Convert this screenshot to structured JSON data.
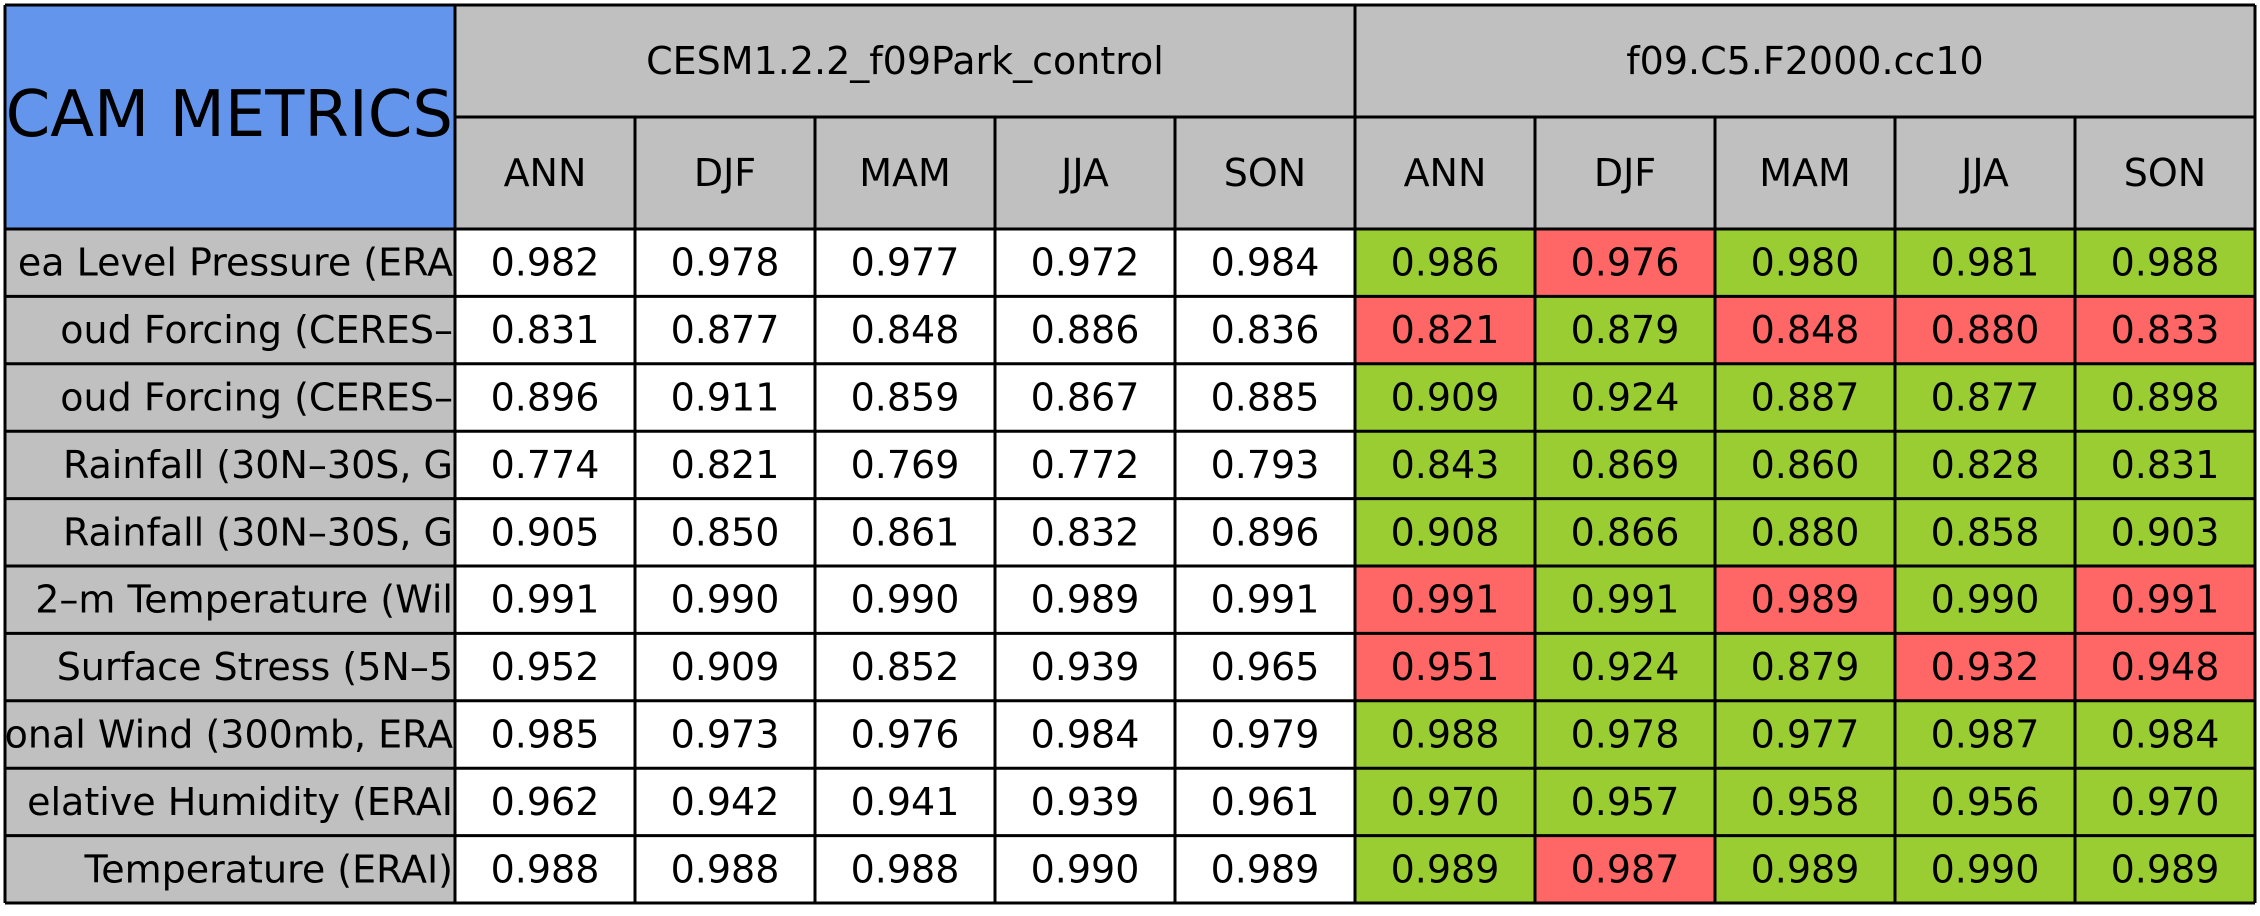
{
  "title": "CAM METRICS",
  "colors": {
    "title_bg": "#6495ED",
    "header_bg": "#C0C0C0",
    "row_label_bg": "#C0C0C0",
    "cell_bg": "#FFFFFF",
    "better": "#9ACD32",
    "worse": "#FF6666",
    "border": "#000000"
  },
  "chart_data": {
    "type": "table",
    "groups": [
      {
        "name": "CESM1.2.2_f09Park_control",
        "columns": [
          "ANN",
          "DJF",
          "MAM",
          "JJA",
          "SON"
        ]
      },
      {
        "name": "f09.C5.F2000.cc10",
        "columns": [
          "ANN",
          "DJF",
          "MAM",
          "JJA",
          "SON"
        ]
      }
    ],
    "rows": [
      {
        "label": "ea Level Pressure (ERA",
        "values": [
          "0.982",
          "0.978",
          "0.977",
          "0.972",
          "0.984",
          "0.986",
          "0.976",
          "0.980",
          "0.981",
          "0.988"
        ],
        "status": [
          "",
          "",
          "",
          "",
          "",
          "better",
          "worse",
          "better",
          "better",
          "better"
        ]
      },
      {
        "label": "oud Forcing (CERES–",
        "values": [
          "0.831",
          "0.877",
          "0.848",
          "0.886",
          "0.836",
          "0.821",
          "0.879",
          "0.848",
          "0.880",
          "0.833"
        ],
        "status": [
          "",
          "",
          "",
          "",
          "",
          "worse",
          "better",
          "worse",
          "worse",
          "worse"
        ]
      },
      {
        "label": "oud Forcing (CERES–",
        "values": [
          "0.896",
          "0.911",
          "0.859",
          "0.867",
          "0.885",
          "0.909",
          "0.924",
          "0.887",
          "0.877",
          "0.898"
        ],
        "status": [
          "",
          "",
          "",
          "",
          "",
          "better",
          "better",
          "better",
          "better",
          "better"
        ]
      },
      {
        "label": "Rainfall (30N–30S, G",
        "values": [
          "0.774",
          "0.821",
          "0.769",
          "0.772",
          "0.793",
          "0.843",
          "0.869",
          "0.860",
          "0.828",
          "0.831"
        ],
        "status": [
          "",
          "",
          "",
          "",
          "",
          "better",
          "better",
          "better",
          "better",
          "better"
        ]
      },
      {
        "label": "Rainfall (30N–30S, G",
        "values": [
          "0.905",
          "0.850",
          "0.861",
          "0.832",
          "0.896",
          "0.908",
          "0.866",
          "0.880",
          "0.858",
          "0.903"
        ],
        "status": [
          "",
          "",
          "",
          "",
          "",
          "better",
          "better",
          "better",
          "better",
          "better"
        ]
      },
      {
        "label": "2–m Temperature (Wil",
        "values": [
          "0.991",
          "0.990",
          "0.990",
          "0.989",
          "0.991",
          "0.991",
          "0.991",
          "0.989",
          "0.990",
          "0.991"
        ],
        "status": [
          "",
          "",
          "",
          "",
          "",
          "worse",
          "better",
          "worse",
          "better",
          "worse"
        ]
      },
      {
        "label": "Surface Stress (5N–5",
        "values": [
          "0.952",
          "0.909",
          "0.852",
          "0.939",
          "0.965",
          "0.951",
          "0.924",
          "0.879",
          "0.932",
          "0.948"
        ],
        "status": [
          "",
          "",
          "",
          "",
          "",
          "worse",
          "better",
          "better",
          "worse",
          "worse"
        ]
      },
      {
        "label": "onal Wind (300mb, ERA",
        "values": [
          "0.985",
          "0.973",
          "0.976",
          "0.984",
          "0.979",
          "0.988",
          "0.978",
          "0.977",
          "0.987",
          "0.984"
        ],
        "status": [
          "",
          "",
          "",
          "",
          "",
          "better",
          "better",
          "better",
          "better",
          "better"
        ]
      },
      {
        "label": "elative Humidity (ERAI",
        "values": [
          "0.962",
          "0.942",
          "0.941",
          "0.939",
          "0.961",
          "0.970",
          "0.957",
          "0.958",
          "0.956",
          "0.970"
        ],
        "status": [
          "",
          "",
          "",
          "",
          "",
          "better",
          "better",
          "better",
          "better",
          "better"
        ]
      },
      {
        "label": "Temperature (ERAI)",
        "values": [
          "0.988",
          "0.988",
          "0.988",
          "0.990",
          "0.989",
          "0.989",
          "0.987",
          "0.989",
          "0.990",
          "0.989"
        ],
        "status": [
          "",
          "",
          "",
          "",
          "",
          "better",
          "worse",
          "better",
          "better",
          "better"
        ]
      }
    ]
  }
}
